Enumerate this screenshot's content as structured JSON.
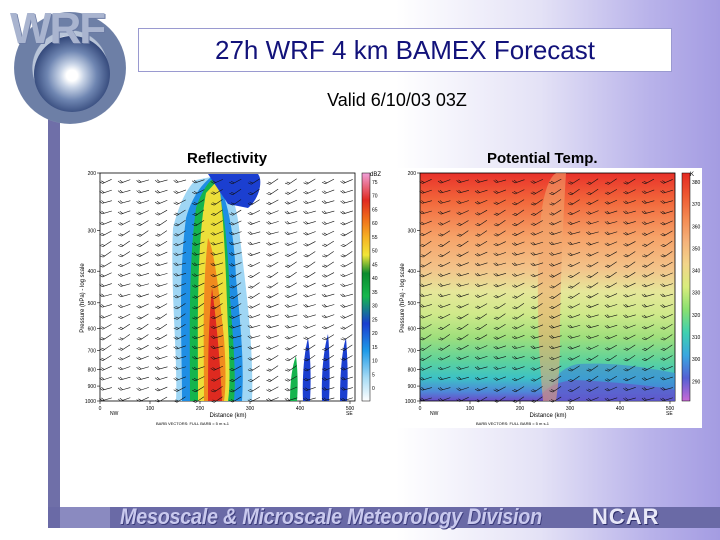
{
  "logo": {
    "text": "WRF"
  },
  "title": "27h WRF 4 km BAMEX Forecast",
  "subtitle": "Valid 6/10/03 03Z",
  "footer": {
    "division": "Mesoscale & Microscale Meteorology Division",
    "org": "NCAR"
  },
  "panels": [
    {
      "label": "Reflectivity",
      "ylabel": "Pressure (hPa) - log scale",
      "xlabel": "Distance (km)",
      "y_ticks": [
        "200",
        "300",
        "400",
        "500",
        "600",
        "700",
        "800",
        "900",
        "1000"
      ],
      "x_ticks": [
        "0",
        "100",
        "200",
        "300",
        "400",
        "500"
      ],
      "left_end": "NW",
      "right_end": "SE",
      "caption": "BARB VECTORS:  FULL BARB = 5 m s-1",
      "unit": "dBZ",
      "colorbar_ticks": [
        "75",
        "70",
        "65",
        "60",
        "55",
        "50",
        "45",
        "40",
        "35",
        "30",
        "25",
        "20",
        "15",
        "10",
        "5",
        "0"
      ]
    },
    {
      "label": "Potential Temp.",
      "ylabel": "Pressure (hPa) - log scale",
      "xlabel": "Distance (km)",
      "y_ticks": [
        "200",
        "300",
        "400",
        "500",
        "600",
        "700",
        "800",
        "900",
        "1000"
      ],
      "x_ticks": [
        "0",
        "100",
        "200",
        "300",
        "400",
        "500"
      ],
      "left_end": "NW",
      "right_end": "SE",
      "caption": "BARB VECTORS:  FULL BARB = 5 m s-1",
      "unit": "K",
      "colorbar_ticks": [
        "380",
        "370",
        "360",
        "350",
        "340",
        "330",
        "320",
        "310",
        "300",
        "290"
      ]
    }
  ]
}
